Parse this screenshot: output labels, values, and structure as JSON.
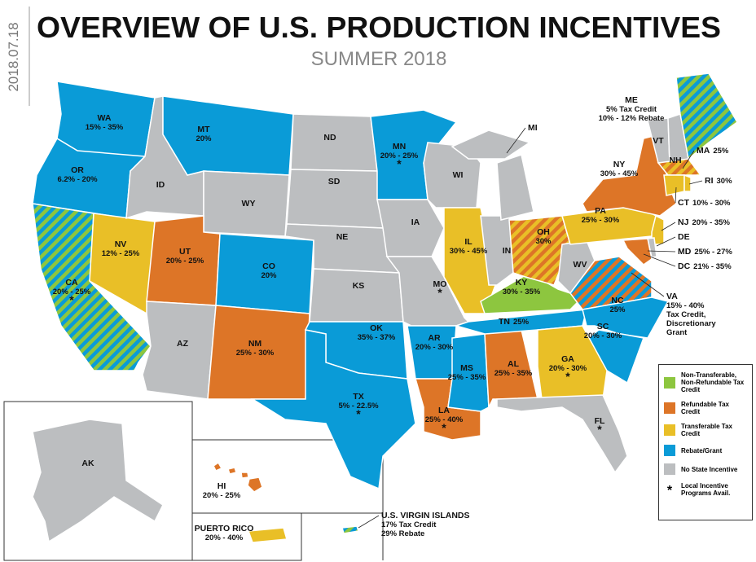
{
  "date": "2018.07.18",
  "title": "OVERVIEW OF U.S. PRODUCTION INCENTIVES",
  "subtitle": "SUMMER 2018",
  "legend": [
    {
      "label": "Non-Transferable, Non-Refundable Tax Credit",
      "color": "#8dc63f"
    },
    {
      "label": "Refundable Tax Credit",
      "color": "#dd7527"
    },
    {
      "label": "Transferable Tax Credit",
      "color": "#e9bf27"
    },
    {
      "label": "Rebate/Grant",
      "color": "#0a9bd7"
    },
    {
      "label": "No State Incentive",
      "color": "#bcbec0"
    },
    {
      "label": "Local Incentive Programs Avail.",
      "symbol": "*"
    }
  ],
  "states": [
    {
      "abbr": "WA",
      "lines": [
        "15% - 35%"
      ],
      "fill": [
        3
      ]
    },
    {
      "abbr": "OR",
      "lines": [
        "6.2% - 20%"
      ],
      "fill": [
        3
      ]
    },
    {
      "abbr": "CA",
      "lines": [
        "20% - 25%"
      ],
      "fill": [
        0,
        3
      ],
      "local": true
    },
    {
      "abbr": "NV",
      "lines": [
        "12% - 25%"
      ],
      "fill": [
        2
      ]
    },
    {
      "abbr": "ID",
      "fill": [
        4
      ]
    },
    {
      "abbr": "MT",
      "lines": [
        "20%"
      ],
      "fill": [
        3
      ]
    },
    {
      "abbr": "WY",
      "fill": [
        4
      ]
    },
    {
      "abbr": "UT",
      "lines": [
        "20% - 25%"
      ],
      "fill": [
        1
      ]
    },
    {
      "abbr": "CO",
      "lines": [
        "20%"
      ],
      "fill": [
        3
      ]
    },
    {
      "abbr": "AZ",
      "fill": [
        4
      ]
    },
    {
      "abbr": "NM",
      "lines": [
        "25% - 30%"
      ],
      "fill": [
        1
      ]
    },
    {
      "abbr": "ND",
      "fill": [
        4
      ]
    },
    {
      "abbr": "SD",
      "fill": [
        4
      ]
    },
    {
      "abbr": "NE",
      "fill": [
        4
      ]
    },
    {
      "abbr": "KS",
      "fill": [
        4
      ]
    },
    {
      "abbr": "OK",
      "lines": [
        "35% - 37%"
      ],
      "fill": [
        3
      ]
    },
    {
      "abbr": "TX",
      "lines": [
        "5% - 22.5%"
      ],
      "fill": [
        3
      ],
      "local": true
    },
    {
      "abbr": "MN",
      "lines": [
        "20% - 25%"
      ],
      "fill": [
        3
      ],
      "local": true
    },
    {
      "abbr": "IA",
      "fill": [
        4
      ]
    },
    {
      "abbr": "MO",
      "fill": [
        4
      ],
      "local": true
    },
    {
      "abbr": "AR",
      "lines": [
        "20% - 30%"
      ],
      "fill": [
        3
      ]
    },
    {
      "abbr": "LA",
      "lines": [
        "25% - 40%"
      ],
      "fill": [
        1
      ],
      "local": true
    },
    {
      "abbr": "WI",
      "fill": [
        4
      ]
    },
    {
      "abbr": "IL",
      "lines": [
        "30% - 45%"
      ],
      "fill": [
        2
      ]
    },
    {
      "abbr": "MS",
      "lines": [
        "25% - 35%"
      ],
      "fill": [
        3
      ]
    },
    {
      "abbr": "AL",
      "lines": [
        "25% - 35%"
      ],
      "fill": [
        1
      ]
    },
    {
      "abbr": "TN",
      "lines": [
        "25%"
      ],
      "fill": [
        3
      ]
    },
    {
      "abbr": "KY",
      "lines": [
        "30% - 35%"
      ],
      "fill": [
        0
      ]
    },
    {
      "abbr": "IN",
      "fill": [
        4
      ]
    },
    {
      "abbr": "MI",
      "fill": [
        4
      ]
    },
    {
      "abbr": "OH",
      "lines": [
        "30%"
      ],
      "fill": [
        1,
        2
      ]
    },
    {
      "abbr": "WV",
      "fill": [
        4
      ]
    },
    {
      "abbr": "VA",
      "lines": [
        "15% - 40%",
        "Tax Credit,",
        "Discretionary",
        "Grant"
      ],
      "fill": [
        1,
        3
      ]
    },
    {
      "abbr": "NC",
      "lines": [
        "25%"
      ],
      "fill": [
        3
      ]
    },
    {
      "abbr": "SC",
      "lines": [
        "20% - 30%"
      ],
      "fill": [
        3
      ]
    },
    {
      "abbr": "GA",
      "lines": [
        "20% - 30%"
      ],
      "fill": [
        2
      ],
      "local": true
    },
    {
      "abbr": "FL",
      "fill": [
        4
      ],
      "local": true
    },
    {
      "abbr": "PA",
      "lines": [
        "25% - 30%"
      ],
      "fill": [
        2
      ]
    },
    {
      "abbr": "NY",
      "lines": [
        "30% - 45%"
      ],
      "fill": [
        1
      ]
    },
    {
      "abbr": "NJ",
      "lines": [
        "20% - 35%"
      ],
      "fill": [
        2
      ]
    },
    {
      "abbr": "DE",
      "fill": [
        4
      ]
    },
    {
      "abbr": "MD",
      "lines": [
        "25% - 27%"
      ],
      "fill": [
        1
      ]
    },
    {
      "abbr": "DC",
      "lines": [
        "21% - 35%"
      ],
      "fill": [
        1
      ]
    },
    {
      "abbr": "VT",
      "fill": [
        4
      ]
    },
    {
      "abbr": "NH",
      "fill": [
        4
      ]
    },
    {
      "abbr": "ME",
      "lines": [
        "5% Tax Credit",
        "10% - 12% Rebate"
      ],
      "fill": [
        0,
        3
      ]
    },
    {
      "abbr": "MA",
      "lines": [
        "25%"
      ],
      "fill": [
        1,
        2
      ]
    },
    {
      "abbr": "CT",
      "lines": [
        "10% - 30%"
      ],
      "fill": [
        2
      ]
    },
    {
      "abbr": "RI",
      "lines": [
        "30%"
      ],
      "fill": [
        2
      ]
    },
    {
      "abbr": "AK",
      "fill": [
        4
      ]
    },
    {
      "abbr": "HI",
      "lines": [
        "20% - 25%"
      ],
      "fill": [
        1
      ]
    },
    {
      "abbr": "PUERTO RICO",
      "lines": [
        "20% - 40%"
      ],
      "fill": [
        2
      ]
    },
    {
      "abbr": "U.S. VIRGIN ISLANDS",
      "lines": [
        "17% Tax Credit",
        "29% Rebate"
      ],
      "fill": [
        0,
        3
      ]
    }
  ]
}
